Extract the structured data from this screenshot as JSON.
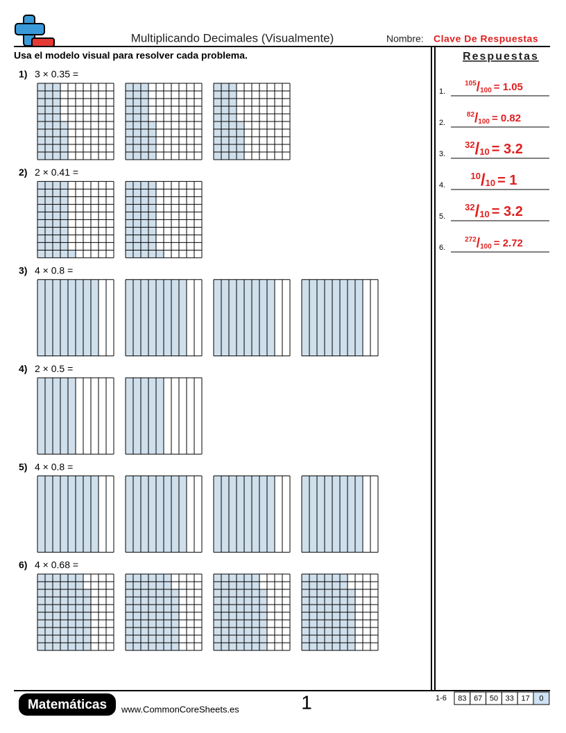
{
  "header": {
    "title": "Multiplicando Decimales (Visualmente)",
    "name_label": "Nombre:",
    "name_value": "Clave De Respuestas"
  },
  "instructions": "Usa el modelo visual para resolver cada problema.",
  "problems": [
    {
      "label": "1)",
      "text": "3 × 0.35 =",
      "models": [
        {
          "divisions": 100,
          "shaded": 35
        },
        {
          "divisions": 100,
          "shaded": 35
        },
        {
          "divisions": 100,
          "shaded": 35
        }
      ]
    },
    {
      "label": "2)",
      "text": "2 × 0.41 =",
      "models": [
        {
          "divisions": 100,
          "shaded": 41
        },
        {
          "divisions": 100,
          "shaded": 41
        }
      ]
    },
    {
      "label": "3)",
      "text": "4 × 0.8 =",
      "models": [
        {
          "divisions": 10,
          "shaded": 8
        },
        {
          "divisions": 10,
          "shaded": 8
        },
        {
          "divisions": 10,
          "shaded": 8
        },
        {
          "divisions": 10,
          "shaded": 8
        }
      ]
    },
    {
      "label": "4)",
      "text": "2 × 0.5 =",
      "models": [
        {
          "divisions": 10,
          "shaded": 5
        },
        {
          "divisions": 10,
          "shaded": 5
        }
      ]
    },
    {
      "label": "5)",
      "text": "4 × 0.8 =",
      "models": [
        {
          "divisions": 10,
          "shaded": 8
        },
        {
          "divisions": 10,
          "shaded": 8
        },
        {
          "divisions": 10,
          "shaded": 8
        },
        {
          "divisions": 10,
          "shaded": 8
        }
      ]
    },
    {
      "label": "6)",
      "text": "4 × 0.68 =",
      "models": [
        {
          "divisions": 100,
          "shaded": 68
        },
        {
          "divisions": 100,
          "shaded": 68
        },
        {
          "divisions": 100,
          "shaded": 68
        },
        {
          "divisions": 100,
          "shaded": 68
        }
      ]
    }
  ],
  "answers": {
    "title": "Respuestas",
    "items": [
      {
        "label": "1.",
        "numerator": "105",
        "denominator": "100",
        "result": "= 1.05"
      },
      {
        "label": "2.",
        "numerator": "82",
        "denominator": "100",
        "result": "= 0.82"
      },
      {
        "label": "3.",
        "numerator": "32",
        "denominator": "10",
        "result": "= 3.2"
      },
      {
        "label": "4.",
        "numerator": "10",
        "denominator": "10",
        "result": "= 1"
      },
      {
        "label": "5.",
        "numerator": "32",
        "denominator": "10",
        "result": "= 3.2"
      },
      {
        "label": "6.",
        "numerator": "272",
        "denominator": "100",
        "result": "= 2.72"
      }
    ]
  },
  "footer": {
    "brand": "Matemáticas",
    "url": "www.CommonCoreSheets.es",
    "page": "1",
    "score": {
      "range": "1-6",
      "values": [
        83,
        67,
        50,
        33,
        17,
        0
      ]
    }
  }
}
